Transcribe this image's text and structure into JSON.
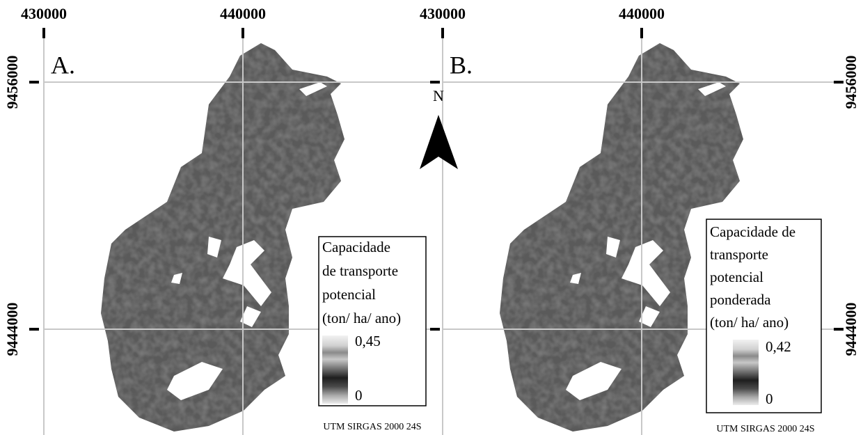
{
  "panels": [
    {
      "label": "A.",
      "x_ticks": [
        430000,
        440000
      ],
      "y_ticks": [
        9456000,
        9444000
      ],
      "legend": {
        "title": [
          "Capacidade",
          "de transporte",
          "potencial",
          "(ton/ ha/ ano)"
        ],
        "max_label": "0,45",
        "min_label": "0"
      },
      "projection": "UTM SIRGAS 2000 24S"
    },
    {
      "label": "B.",
      "x_ticks": [
        430000,
        440000
      ],
      "y_ticks": [
        9456000,
        9444000
      ],
      "legend": {
        "title": [
          "Capacidade de",
          "transporte",
          "potencial",
          "ponderada",
          "(ton/ ha/ ano)"
        ],
        "max_label": "0,42",
        "min_label": "0"
      },
      "projection": "UTM SIRGAS 2000 24S"
    }
  ],
  "north_label": "N"
}
